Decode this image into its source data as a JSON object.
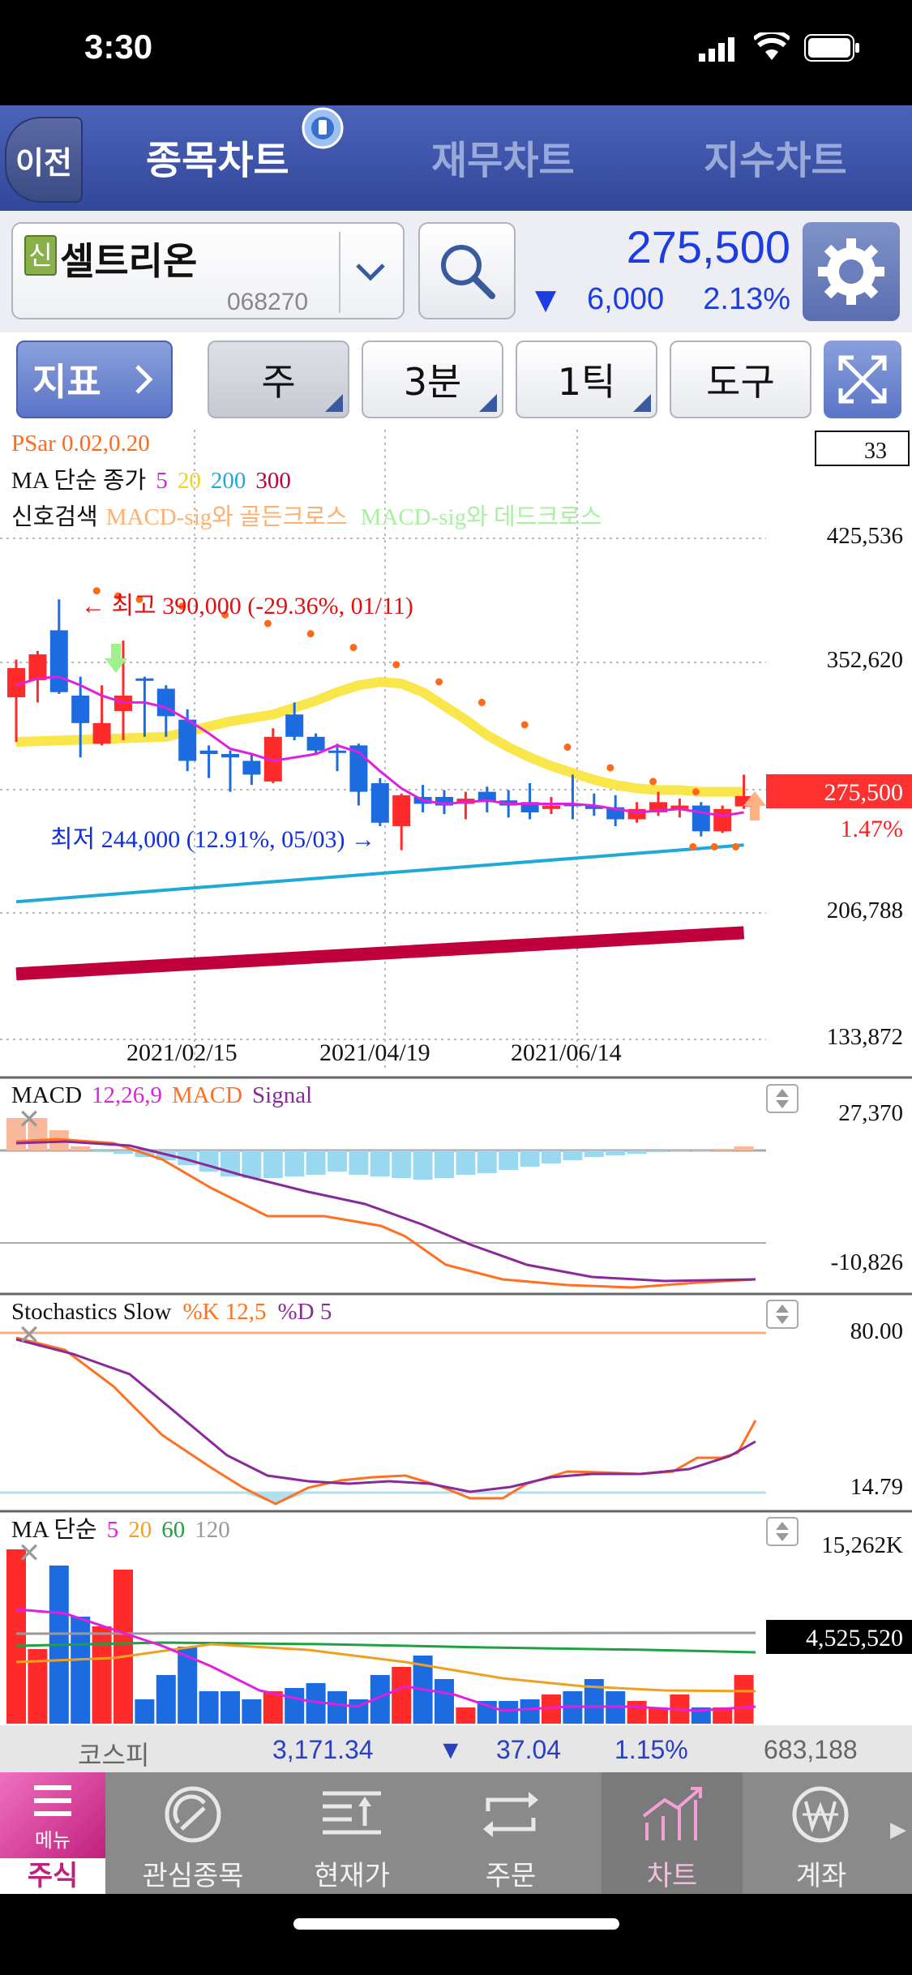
{
  "status": {
    "time": "3:30"
  },
  "nav": {
    "back": "이전",
    "tabs": [
      "종목차트",
      "재무차트",
      "지수차트"
    ]
  },
  "stock": {
    "badge": "신",
    "name": "셀트리온",
    "code": "068270",
    "price": "275,500",
    "change": "6,000",
    "change_pct": "2.13%"
  },
  "toolbar": {
    "indicator": "지표",
    "period": "주",
    "minute": "3분",
    "tick": "1틱",
    "tools": "도구"
  },
  "chart": {
    "psar_label": "PSar 0.02,0.20",
    "ma_label": "MA 단순 종가",
    "ma_periods": [
      "5",
      "20",
      "200",
      "300"
    ],
    "signal_label": "신호검색",
    "signal_golden": "MACD-sig와 골든크로스",
    "signal_dead": "MACD-sig와 데드크로스",
    "count_box": "33",
    "y_ticks": [
      "425,536",
      "352,620",
      "206,788",
      "133,872"
    ],
    "price_tag": "275,500",
    "price_pct": "1.47%",
    "high_note": "← 최고 390,000 (-29.36%, 01/11)",
    "low_note": "최저 244,000 (12.91%, 05/03) →",
    "x_ticks": [
      "2021/02/15",
      "2021/04/19",
      "2021/06/14"
    ],
    "macd_label": "MACD",
    "macd_params": "12,26,9",
    "macd_line": "MACD",
    "macd_signal": "Signal",
    "macd_hi": "27,370",
    "macd_lo": "-10,826",
    "stoch_label": "Stochastics Slow",
    "stoch_k": "%K 12,5",
    "stoch_d": "%D 5",
    "stoch_hi": "80.00",
    "stoch_lo": "14.79",
    "vol_label": "MA 단순",
    "vol_periods": [
      "5",
      "20",
      "60",
      "120"
    ],
    "vol_hi": "15,262K",
    "vol_tag": "4,525,520"
  },
  "colors": {
    "up": "#ff2b2b",
    "down": "#1c6be0",
    "ma5": "#e020e0",
    "ma20": "#f8e64a",
    "ma200": "#20a8d8",
    "ma300": "#c0003c",
    "psar": "#ff6a1a"
  },
  "chart_data": {
    "type": "candlestick",
    "candles": [
      {
        "o": 333000,
        "h": 355000,
        "l": 307000,
        "c": 350000
      },
      {
        "o": 343000,
        "h": 360000,
        "l": 330000,
        "c": 358000
      },
      {
        "o": 372000,
        "h": 390000,
        "l": 335000,
        "c": 336000
      },
      {
        "o": 334000,
        "h": 345000,
        "l": 298000,
        "c": 318000
      },
      {
        "o": 306000,
        "h": 340000,
        "l": 305000,
        "c": 318000
      },
      {
        "o": 325000,
        "h": 366000,
        "l": 308000,
        "c": 334000
      },
      {
        "o": 344000,
        "h": 345000,
        "l": 310000,
        "c": 343000
      },
      {
        "o": 338000,
        "h": 340000,
        "l": 310000,
        "c": 322000
      },
      {
        "o": 320000,
        "h": 326000,
        "l": 290000,
        "c": 296000
      },
      {
        "o": 302000,
        "h": 305000,
        "l": 286000,
        "c": 300000
      },
      {
        "o": 300000,
        "h": 302000,
        "l": 278000,
        "c": 298000
      },
      {
        "o": 296000,
        "h": 300000,
        "l": 282000,
        "c": 288000
      },
      {
        "o": 284000,
        "h": 315000,
        "l": 283000,
        "c": 310000
      },
      {
        "o": 323000,
        "h": 330000,
        "l": 308000,
        "c": 310000
      },
      {
        "o": 310000,
        "h": 312000,
        "l": 300000,
        "c": 302000
      },
      {
        "o": 302000,
        "h": 306000,
        "l": 290000,
        "c": 301000
      },
      {
        "o": 305000,
        "h": 306000,
        "l": 270000,
        "c": 278000
      },
      {
        "o": 283000,
        "h": 286000,
        "l": 258000,
        "c": 260000
      },
      {
        "o": 258000,
        "h": 277000,
        "l": 244000,
        "c": 276000
      },
      {
        "o": 275000,
        "h": 282000,
        "l": 266000,
        "c": 271000
      },
      {
        "o": 275000,
        "h": 279000,
        "l": 265000,
        "c": 270000
      },
      {
        "o": 271000,
        "h": 278000,
        "l": 262000,
        "c": 274000
      },
      {
        "o": 278000,
        "h": 281000,
        "l": 266000,
        "c": 272000
      },
      {
        "o": 273000,
        "h": 279000,
        "l": 263000,
        "c": 270000
      },
      {
        "o": 272000,
        "h": 283000,
        "l": 262000,
        "c": 266000
      },
      {
        "o": 268000,
        "h": 275000,
        "l": 265000,
        "c": 270000
      },
      {
        "o": 271000,
        "h": 288000,
        "l": 262000,
        "c": 270000
      },
      {
        "o": 270000,
        "h": 277000,
        "l": 264000,
        "c": 268000
      },
      {
        "o": 269000,
        "h": 276000,
        "l": 258000,
        "c": 262000
      },
      {
        "o": 262000,
        "h": 272000,
        "l": 260000,
        "c": 268000
      },
      {
        "o": 266000,
        "h": 278000,
        "l": 264000,
        "c": 272000
      },
      {
        "o": 268000,
        "h": 274000,
        "l": 263000,
        "c": 270000
      },
      {
        "o": 270000,
        "h": 272000,
        "l": 252000,
        "c": 255000
      },
      {
        "o": 255000,
        "h": 270000,
        "l": 254000,
        "c": 268000
      },
      {
        "o": 269500,
        "h": 288000,
        "l": 268000,
        "c": 275500
      }
    ],
    "ylim": [
      133872,
      425536
    ],
    "ma5": [
      340000,
      344000,
      345000,
      340000,
      334000,
      330000,
      330000,
      327000,
      320000,
      312000,
      303000,
      300000,
      296000,
      298000,
      300000,
      305000,
      301000,
      290000,
      280000,
      273000,
      271000,
      272000,
      273000,
      271000,
      271000,
      271000,
      271000,
      270000,
      268000,
      266000,
      267000,
      268000,
      266000,
      264000,
      266000
    ],
    "ma20": [
      310000,
      313000,
      316000,
      319000,
      321000,
      323000,
      327000,
      331000,
      336000,
      340000,
      342000,
      341000,
      336000,
      328000,
      320000,
      311000,
      304000,
      298000,
      293000,
      289000,
      285000,
      282000,
      280000,
      279000,
      279000,
      278000,
      278000,
      278000
    ],
    "ma200": [
      214000,
      247000
    ],
    "ma300": [
      172000,
      196000
    ],
    "volume": {
      "hi": 15262000,
      "last": 4525520
    }
  },
  "index_bar": {
    "name": "코스피",
    "value": "3,171.34",
    "change": "37.04",
    "pct": "1.15%",
    "volume": "683,188"
  },
  "tabs": [
    "주식",
    "관심종목",
    "현재가",
    "주문",
    "차트",
    "계좌"
  ],
  "menu_label": "메뉴"
}
